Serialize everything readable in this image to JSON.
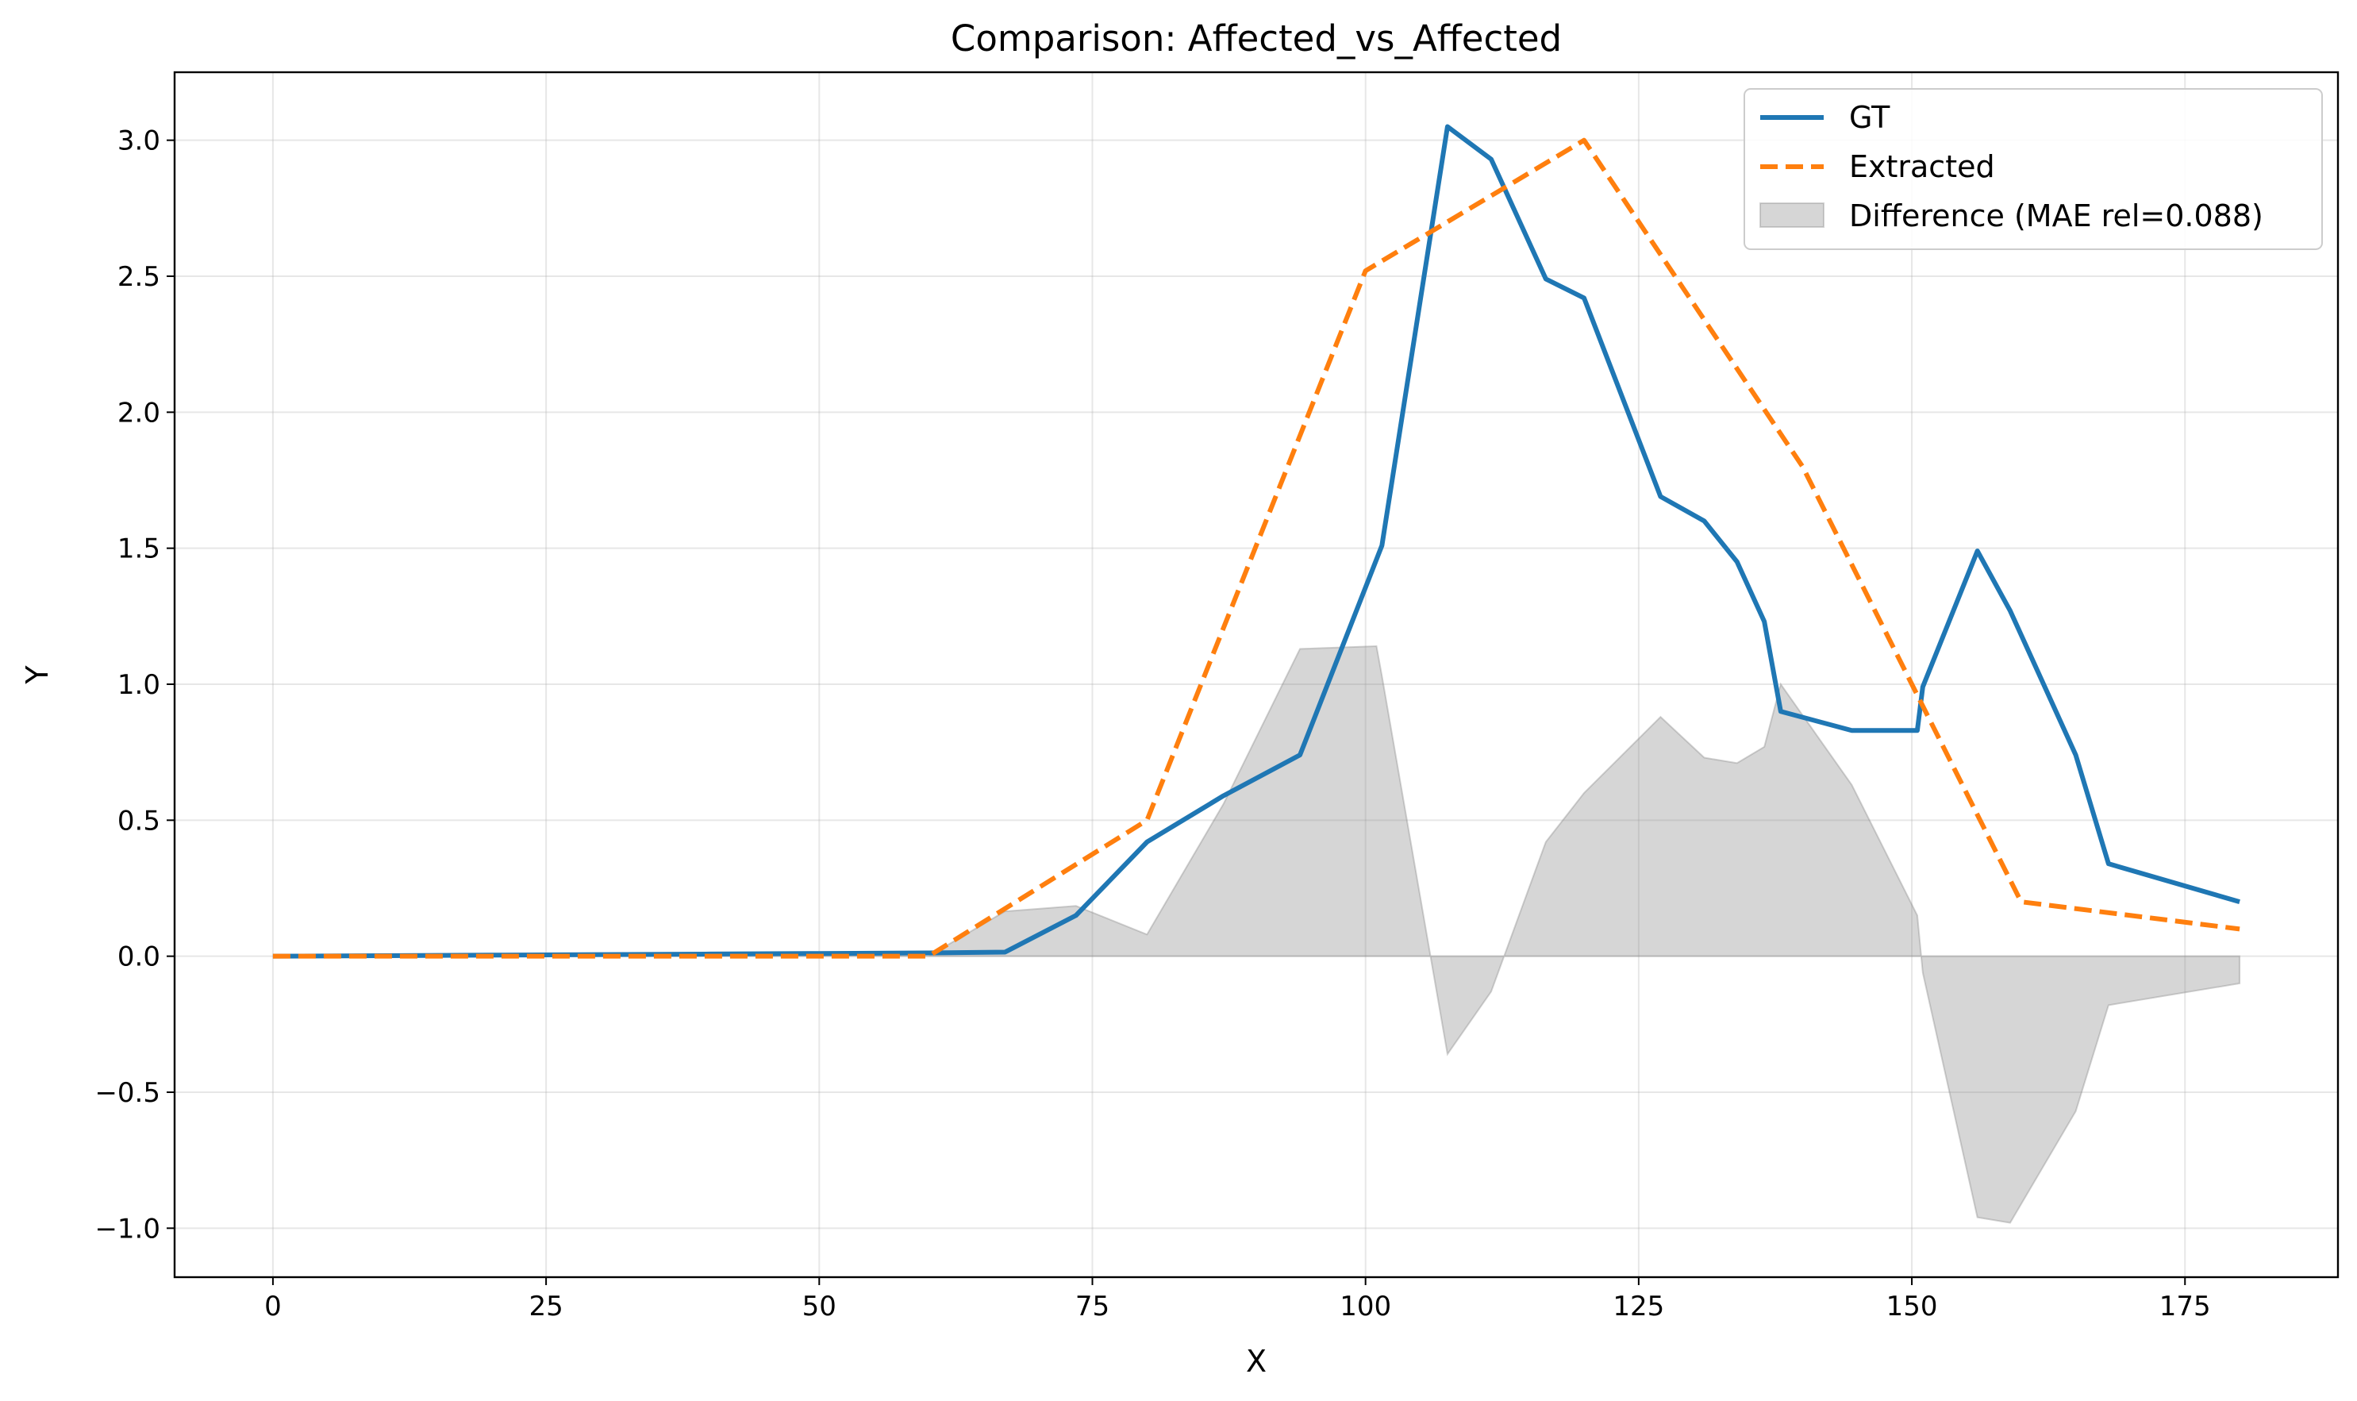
{
  "chart_data": {
    "type": "line",
    "title": "Comparison: Affected_vs_Affected",
    "xlabel": "X",
    "ylabel": "Y",
    "xlim": [
      -9,
      189
    ],
    "ylim": [
      -1.18,
      3.25
    ],
    "xticks": [
      0,
      25,
      50,
      75,
      100,
      125,
      150,
      175
    ],
    "xtick_labels": [
      "0",
      "25",
      "50",
      "75",
      "100",
      "125",
      "150",
      "175"
    ],
    "yticks": [
      -1.0,
      -0.5,
      0.0,
      0.5,
      1.0,
      1.5,
      2.0,
      2.5,
      3.0
    ],
    "ytick_labels": [
      "−1.0",
      "−0.5",
      "0.0",
      "0.5",
      "1.0",
      "1.5",
      "2.0",
      "2.5",
      "3.0"
    ],
    "grid": true,
    "legend_position": "top-right",
    "series": [
      {
        "name": "GT",
        "style": "solid",
        "color": "#1f77b4",
        "x": [
          0,
          10,
          20,
          30,
          40,
          50,
          60,
          67,
          73.5,
          80,
          87,
          94,
          101.5,
          107.5,
          111.5,
          116.5,
          120,
          127,
          131,
          134,
          136.5,
          138,
          144.5,
          150.5,
          151,
          156,
          159,
          165,
          168,
          180
        ],
        "y": [
          0.0,
          0.002,
          0.004,
          0.006,
          0.008,
          0.01,
          0.012,
          0.015,
          0.15,
          0.42,
          0.59,
          0.74,
          1.51,
          3.05,
          2.93,
          2.49,
          2.42,
          1.69,
          1.6,
          1.45,
          1.23,
          0.9,
          0.83,
          0.83,
          0.99,
          1.49,
          1.27,
          0.74,
          0.34,
          0.2
        ]
      },
      {
        "name": "Extracted",
        "style": "dashed",
        "color": "#ff7f0e",
        "x": [
          0,
          60,
          80,
          100,
          120,
          140,
          160,
          180
        ],
        "y": [
          0.0,
          0.0,
          0.5,
          2.52,
          3.0,
          1.8,
          0.2,
          0.1
        ]
      },
      {
        "name": "Difference (MAE rel=0.088)",
        "style": "fill",
        "color": "#d6d6d6",
        "x": [
          0,
          10,
          20,
          30,
          40,
          50,
          60,
          67,
          73.5,
          80,
          87,
          94,
          101,
          101.5,
          107.5,
          111.5,
          116.5,
          120,
          127,
          131,
          134,
          136.5,
          138,
          144.5,
          150.5,
          151,
          156,
          159,
          165,
          168,
          180
        ],
        "y": [
          0.0,
          0.002,
          0.004,
          0.006,
          0.008,
          0.01,
          0.0,
          0.165,
          0.185,
          0.08,
          0.56,
          1.13,
          1.14,
          1.03,
          -0.36,
          -0.13,
          0.42,
          0.6,
          0.88,
          0.73,
          0.71,
          0.77,
          1.0,
          0.63,
          0.15,
          -0.06,
          -0.96,
          -0.98,
          -0.57,
          -0.18,
          -0.1
        ]
      }
    ]
  }
}
